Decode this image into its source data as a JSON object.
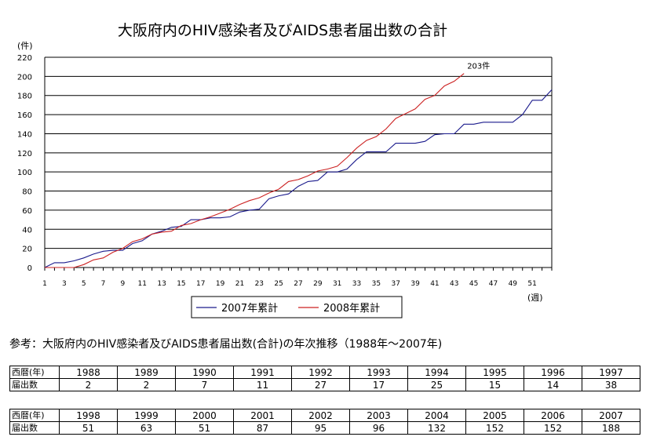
{
  "chart_data": {
    "type": "line",
    "title": "大阪府内のHIV感染者及びAIDS患者届出数の合計",
    "ylabel": "(件)",
    "xlabel": "(週)",
    "ylim": [
      0,
      220
    ],
    "xlim": [
      1,
      53
    ],
    "yticks": [
      0,
      20,
      40,
      60,
      80,
      100,
      120,
      140,
      160,
      180,
      200,
      220
    ],
    "xticks": [
      1,
      3,
      5,
      7,
      9,
      11,
      13,
      15,
      17,
      19,
      21,
      23,
      25,
      27,
      29,
      31,
      33,
      35,
      37,
      39,
      41,
      43,
      45,
      47,
      49,
      51
    ],
    "grid": true,
    "legend_position": "bottom",
    "annotation": {
      "text": "203件",
      "x": 44,
      "y": 203
    },
    "series": [
      {
        "name": "2007年累計",
        "color": "#1a1a8c",
        "x": [
          1,
          2,
          3,
          4,
          5,
          6,
          7,
          8,
          9,
          10,
          11,
          12,
          13,
          14,
          15,
          16,
          17,
          18,
          19,
          20,
          21,
          22,
          23,
          24,
          25,
          26,
          27,
          28,
          29,
          30,
          31,
          32,
          33,
          34,
          35,
          36,
          37,
          38,
          39,
          40,
          41,
          42,
          43,
          44,
          45,
          46,
          47,
          48,
          49,
          50,
          51,
          52,
          53
        ],
        "y": [
          0,
          5,
          5,
          7,
          10,
          14,
          17,
          18,
          18,
          25,
          28,
          35,
          38,
          42,
          43,
          50,
          50,
          52,
          52,
          53,
          58,
          60,
          61,
          72,
          75,
          77,
          85,
          90,
          91,
          100,
          100,
          103,
          113,
          121,
          121,
          121,
          130,
          130,
          130,
          132,
          139,
          140,
          140,
          150,
          150,
          152,
          152,
          152,
          152,
          160,
          175,
          175,
          186
        ]
      },
      {
        "name": "2008年累計",
        "color": "#cc2222",
        "x": [
          1,
          2,
          3,
          4,
          5,
          6,
          7,
          8,
          9,
          10,
          11,
          12,
          13,
          14,
          15,
          16,
          17,
          18,
          19,
          20,
          21,
          22,
          23,
          24,
          25,
          26,
          27,
          28,
          29,
          30,
          31,
          32,
          33,
          34,
          35,
          36,
          37,
          38,
          39,
          40,
          41,
          42,
          43,
          44
        ],
        "y": [
          0,
          0,
          0,
          0,
          3,
          8,
          10,
          16,
          20,
          27,
          30,
          35,
          37,
          38,
          44,
          46,
          50,
          53,
          57,
          61,
          66,
          70,
          73,
          78,
          82,
          90,
          92,
          96,
          101,
          103,
          106,
          115,
          125,
          133,
          137,
          145,
          156,
          161,
          166,
          176,
          180,
          190,
          195,
          203
        ]
      }
    ]
  },
  "reference_note": "参考：大阪府内のHIV感染者及びAIDS患者届出数(合計)の年次推移（1988年〜2007年)",
  "yearly_table": {
    "row_header_year": "西暦(年)",
    "row_header_count": "届出数",
    "rows": [
      {
        "years": [
          "1988",
          "1989",
          "1990",
          "1991",
          "1992",
          "1993",
          "1994",
          "1995",
          "1996",
          "1997"
        ],
        "counts": [
          "2",
          "2",
          "7",
          "11",
          "27",
          "17",
          "25",
          "15",
          "14",
          "38"
        ]
      },
      {
        "years": [
          "1998",
          "1999",
          "2000",
          "2001",
          "2002",
          "2003",
          "2004",
          "2005",
          "2006",
          "2007"
        ],
        "counts": [
          "51",
          "63",
          "51",
          "87",
          "95",
          "96",
          "132",
          "152",
          "152",
          "188"
        ]
      }
    ]
  }
}
